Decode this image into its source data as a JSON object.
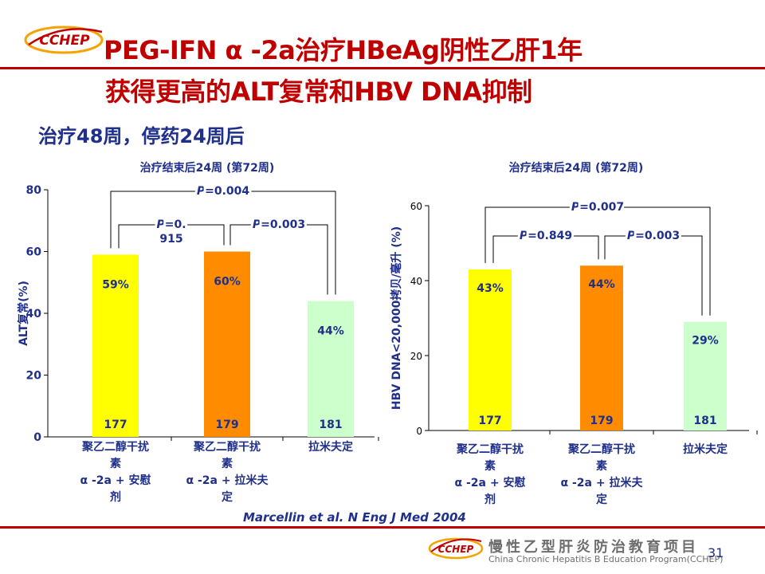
{
  "slide": {
    "logo_text": "CCHEP",
    "title_line1": "PEG-IFN α -2a治疗HBeAg阴性乙肝1年",
    "title_line2": "获得更高的ALT复常和HBV DNA抑制",
    "subtitle": "治疗48周，停药24周后",
    "citation": "Marcellin et al. N Eng J Med 2004",
    "org_cn": "慢性乙型肝炎防治教育项目",
    "org_en": "China Chronic Hepatitis B Education Program(CCHEP)",
    "page_number": "31"
  },
  "colors": {
    "title": "#c00000",
    "text_blue": "#1f2f8a",
    "bar_yellow": "#ffff00",
    "bar_orange": "#ff8c00",
    "bar_green": "#ccffcc"
  },
  "chart_data": [
    {
      "type": "bar",
      "title": "治疗结束后24周 (第72周)",
      "ylabel": "ALT复常(%)",
      "ylim": [
        0,
        80
      ],
      "yticks": [
        0,
        20,
        40,
        60,
        80
      ],
      "categories": [
        [
          "聚乙二醇干扰",
          "素",
          "α -2a + 安慰",
          "剂"
        ],
        [
          "聚乙二醇干扰",
          "素",
          "α -2a + 拉米夫",
          "定"
        ],
        [
          "拉米夫定"
        ]
      ],
      "values": [
        59,
        60,
        44
      ],
      "value_labels": [
        "59%",
        "60%",
        "44%"
      ],
      "n_labels": [
        "177",
        "179",
        "181"
      ],
      "bar_colors": [
        "#ffff00",
        "#ff8c00",
        "#ccffcc"
      ],
      "comparisons": [
        {
          "bars": [
            0,
            1
          ],
          "p_italic": "P",
          "p_value": "=0.",
          "p_value_line2": "915"
        },
        {
          "bars": [
            1,
            2
          ],
          "p_italic": "P",
          "p_value": "=0.003"
        },
        {
          "bars": [
            0,
            2
          ],
          "p_italic": "P",
          "p_value": "=0.004"
        }
      ]
    },
    {
      "type": "bar",
      "title": "治疗结束后24周 (第72周)",
      "ylabel": "HBV DNA<20,000拷贝/毫升 (%)",
      "ylim": [
        0,
        60
      ],
      "yticks": [
        0,
        20,
        40,
        60
      ],
      "categories": [
        [
          "聚乙二醇干扰",
          "素",
          "α -2a + 安慰",
          "剂"
        ],
        [
          "聚乙二醇干扰",
          "素",
          "α -2a + 拉米夫",
          "定"
        ],
        [
          "拉米夫定"
        ]
      ],
      "values": [
        43,
        44,
        29
      ],
      "value_labels": [
        "43%",
        "44%",
        "29%"
      ],
      "n_labels": [
        "177",
        "179",
        "181"
      ],
      "bar_colors": [
        "#ffff00",
        "#ff8c00",
        "#ccffcc"
      ],
      "comparisons": [
        {
          "bars": [
            0,
            1
          ],
          "p_italic": "P",
          "p_value": "=0.849"
        },
        {
          "bars": [
            1,
            2
          ],
          "p_italic": "P",
          "p_value": "=0.003"
        },
        {
          "bars": [
            0,
            2
          ],
          "p_italic": "P",
          "p_value": "=0.007"
        }
      ]
    }
  ]
}
